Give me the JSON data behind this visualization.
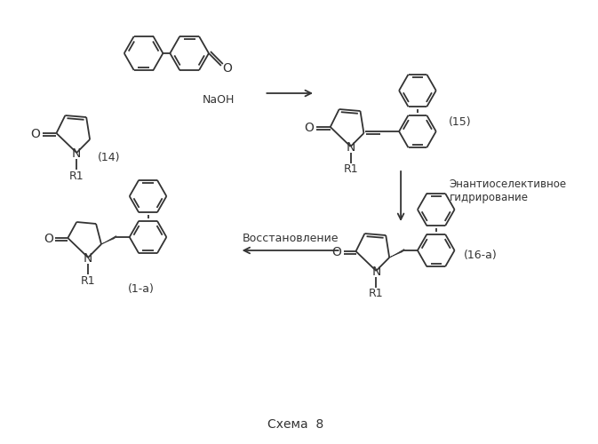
{
  "title": "Схема  8",
  "bg_color": "#ffffff",
  "line_color": "#333333",
  "labels": {
    "compound14": "(14)",
    "compound15": "(15)",
    "compound1a": "(1-a)",
    "compound16a": "(16-a)",
    "naoh": "NaOH",
    "enantio": "Энантиоселективное\nгидрирование",
    "restore": "Восстановление",
    "R1": "R1",
    "N": "N",
    "O": "O"
  }
}
